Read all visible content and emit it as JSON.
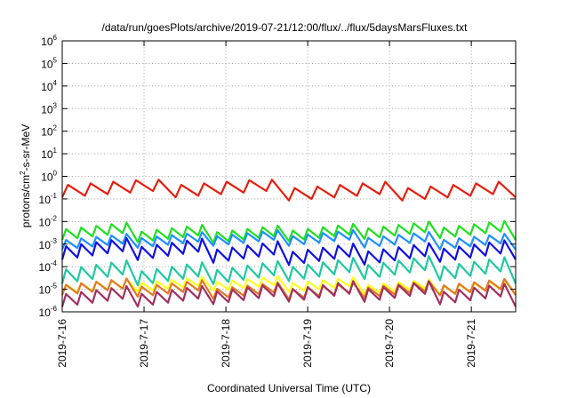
{
  "chart_data": {
    "type": "line",
    "title": "/data/run/goesPlots/archive/2019-07-21/12:00/flux/../flux/5daysMarsFluxes.txt",
    "xlabel": "Coordinated Universal Time (UTC)",
    "ylabel": "protons/cm2-s-sr-MeV",
    "ylabel_parts": [
      "protons/cm",
      "2",
      "-s-sr-MeV"
    ],
    "y_scale": "log",
    "ylim": [
      1e-06,
      1000000.0
    ],
    "xlim": [
      "2019-7-16 00:00",
      "2019-7-21 13:00"
    ],
    "grid": true,
    "y_ticks": [
      {
        "base": "10",
        "exp": "-6"
      },
      {
        "base": "10",
        "exp": "-5"
      },
      {
        "base": "10",
        "exp": "-4"
      },
      {
        "base": "10",
        "exp": "-3"
      },
      {
        "base": "10",
        "exp": "-2"
      },
      {
        "base": "10",
        "exp": "-1"
      },
      {
        "base": "10",
        "exp": "0"
      },
      {
        "base": "10",
        "exp": "1"
      },
      {
        "base": "10",
        "exp": "2"
      },
      {
        "base": "10",
        "exp": "3"
      },
      {
        "base": "10",
        "exp": "4"
      },
      {
        "base": "10",
        "exp": "5"
      },
      {
        "base": "10",
        "exp": "6"
      }
    ],
    "x_ticks": [
      "2019-7-16",
      "2019-7-17",
      "2019-7-18",
      "2019-7-19",
      "2019-7-20",
      "2019-7-21"
    ],
    "series": [
      {
        "color": "#e51e10",
        "logmin": -1.15,
        "logmax": -0.15,
        "cycles": 4,
        "teeth": 5,
        "ramp": 0.45,
        "values_approx": "0.07 to 0.7"
      },
      {
        "color": "#20e020",
        "logmin": -3.0,
        "logmax": -1.95,
        "cycles": 6,
        "teeth": 5,
        "ramp": 0.35,
        "values_approx": "1e-3 to 1.1e-2"
      },
      {
        "color": "#1e90ff",
        "logmin": -3.3,
        "logmax": -2.35,
        "cycles": 6,
        "teeth": 5,
        "ramp": 0.35,
        "values_approx": "5e-4 to 4.5e-3"
      },
      {
        "color": "#1010e0",
        "logmin": -4.0,
        "logmax": -2.7,
        "cycles": 6,
        "teeth": 5,
        "ramp": 0.35,
        "values_approx": "1e-4 to 2e-3"
      },
      {
        "color": "#20c8a0",
        "logmin": -4.9,
        "logmax": -3.5,
        "cycles": 6,
        "teeth": 5,
        "ramp": 0.35,
        "values_approx": "1.3e-5 to 3e-4"
      },
      {
        "color": "#ffff20",
        "logmin": -5.3,
        "logmax": -4.4,
        "cycles": 6,
        "teeth": 5,
        "ramp": 0.35,
        "values_approx": "5e-6 to 4e-5"
      },
      {
        "color": "#e07820",
        "logmin": -5.5,
        "logmax": -4.5,
        "cycles": 6,
        "teeth": 5,
        "ramp": 0.35,
        "values_approx": "3e-6 to 3e-5"
      },
      {
        "color": "#a03060",
        "logmin": -5.85,
        "logmax": -4.6,
        "cycles": 6,
        "teeth": 5,
        "ramp": 0.35,
        "values_approx": "1.4e-6 to 2.5e-5"
      }
    ]
  }
}
